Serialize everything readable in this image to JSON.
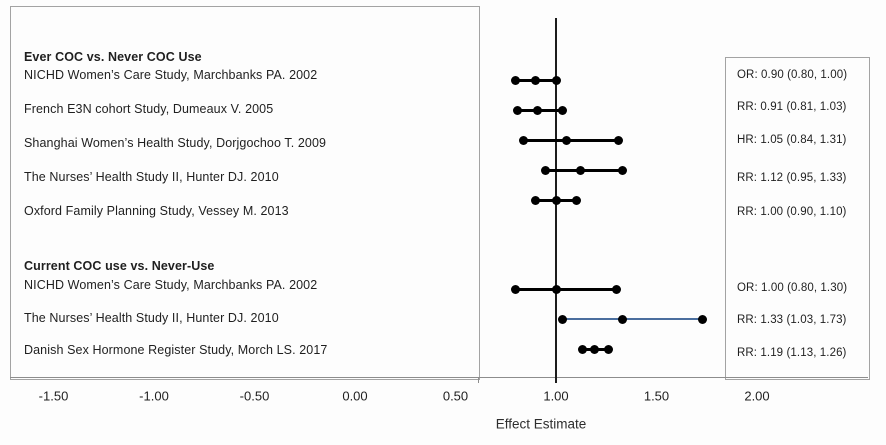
{
  "chart_data": {
    "type": "scatter",
    "subtype": "forest-plot",
    "xlabel": "Effect Estimate",
    "x_ticks": [
      -1.5,
      -1.0,
      -0.5,
      0.0,
      0.5,
      1.0,
      1.5,
      2.0
    ],
    "x_tick_labels": [
      "-1.50",
      "-1.00",
      "-0.50",
      "0.00",
      "0.50",
      "1.00",
      "1.50",
      "2.00"
    ],
    "xlim": [
      -1.75,
      2.35
    ],
    "reference_line_x": 1.0,
    "grid": false,
    "legend": false,
    "colors": {
      "marker": "#000000",
      "ci_line": "#000000",
      "highlight_ci_line": "#4a6e9e",
      "border": "#a3a3a3",
      "reference_line": "#1c1c1c"
    },
    "groups": [
      {
        "header": "Ever COC vs. Never COC Use",
        "rows": [
          {
            "label": "NICHD Women’s Care Study, Marchbanks PA. 2002",
            "measure": "OR",
            "estimate": 0.9,
            "ci_low": 0.8,
            "ci_high": 1.0,
            "text": "OR: 0.90 (0.80, 1.00)",
            "highlight": false
          },
          {
            "label": "French E3N cohort Study, Dumeaux V. 2005",
            "measure": "RR",
            "estimate": 0.91,
            "ci_low": 0.81,
            "ci_high": 1.03,
            "text": "RR: 0.91 (0.81, 1.03)",
            "highlight": false
          },
          {
            "label": "Shanghai Women’s Health Study, Dorjgochoo T. 2009",
            "measure": "HR",
            "estimate": 1.05,
            "ci_low": 0.84,
            "ci_high": 1.31,
            "text": "HR: 1.05 (0.84, 1.31)",
            "highlight": false
          },
          {
            "label": "The Nurses’ Health Study II, Hunter DJ. 2010",
            "measure": "RR",
            "estimate": 1.12,
            "ci_low": 0.95,
            "ci_high": 1.33,
            "text": "RR: 1.12 (0.95, 1.33)",
            "highlight": false
          },
          {
            "label": "Oxford Family Planning Study, Vessey M. 2013",
            "measure": "RR",
            "estimate": 1.0,
            "ci_low": 0.9,
            "ci_high": 1.1,
            "text": "RR: 1.00 (0.90, 1.10)",
            "highlight": false
          }
        ]
      },
      {
        "header": "Current COC use vs. Never-Use",
        "rows": [
          {
            "label": "NICHD Women’s Care Study, Marchbanks PA. 2002",
            "measure": "OR",
            "estimate": 1.0,
            "ci_low": 0.8,
            "ci_high": 1.3,
            "text": "OR: 1.00 (0.80, 1.30)",
            "highlight": false
          },
          {
            "label": "The Nurses’ Health Study II, Hunter DJ. 2010",
            "measure": "RR",
            "estimate": 1.33,
            "ci_low": 1.03,
            "ci_high": 1.73,
            "text": "RR: 1.33 (1.03, 1.73)",
            "highlight": true
          },
          {
            "label": "Danish Sex Hormone Register Study, Morch LS. 2017",
            "measure": "RR",
            "estimate": 1.19,
            "ci_low": 1.13,
            "ci_high": 1.26,
            "text": "RR: 1.19 (1.13, 1.26)",
            "highlight": false
          }
        ]
      }
    ]
  }
}
